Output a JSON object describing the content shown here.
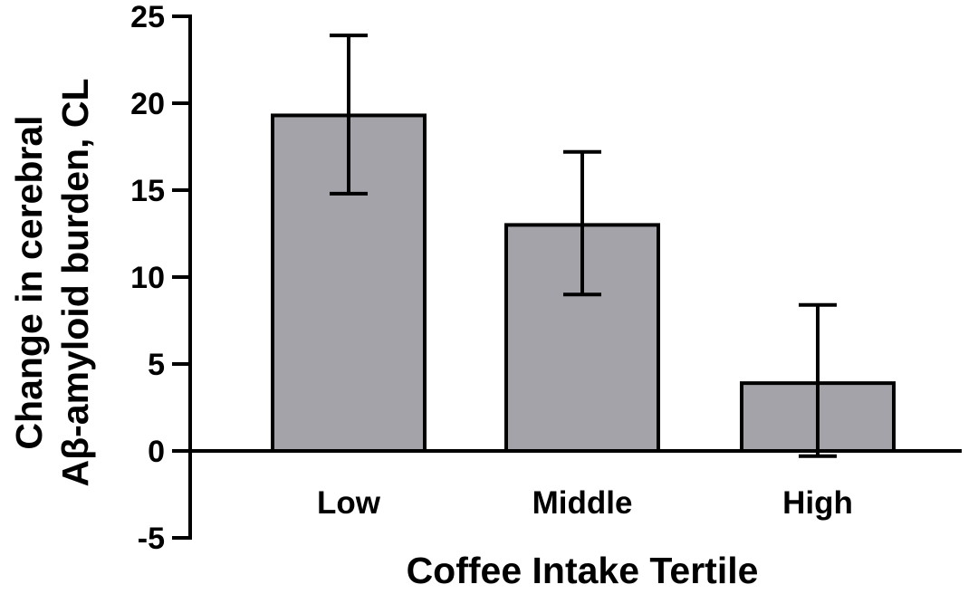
{
  "chart_data": {
    "type": "bar",
    "title": "",
    "xlabel": "Coffee Intake Tertile",
    "ylabel_lines": [
      "Change in cerebral",
      "Aβ-amyloid burden, CL"
    ],
    "categories": [
      "Low",
      "Middle",
      "High"
    ],
    "values": [
      19.3,
      13.0,
      3.9
    ],
    "error_upper": [
      23.9,
      17.2,
      8.4
    ],
    "error_lower": [
      14.8,
      9.0,
      -0.3
    ],
    "ylim": [
      -5,
      25
    ],
    "yticks": [
      -5,
      0,
      5,
      10,
      15,
      20,
      25
    ],
    "ytick_labels": [
      "-5",
      "0",
      "5",
      "10",
      "15",
      "20",
      "25"
    ],
    "grid": false,
    "legend": "none",
    "colors": {
      "bar_fill": "#a4a3a9",
      "bar_stroke": "#000000",
      "axis": "#000000"
    }
  }
}
